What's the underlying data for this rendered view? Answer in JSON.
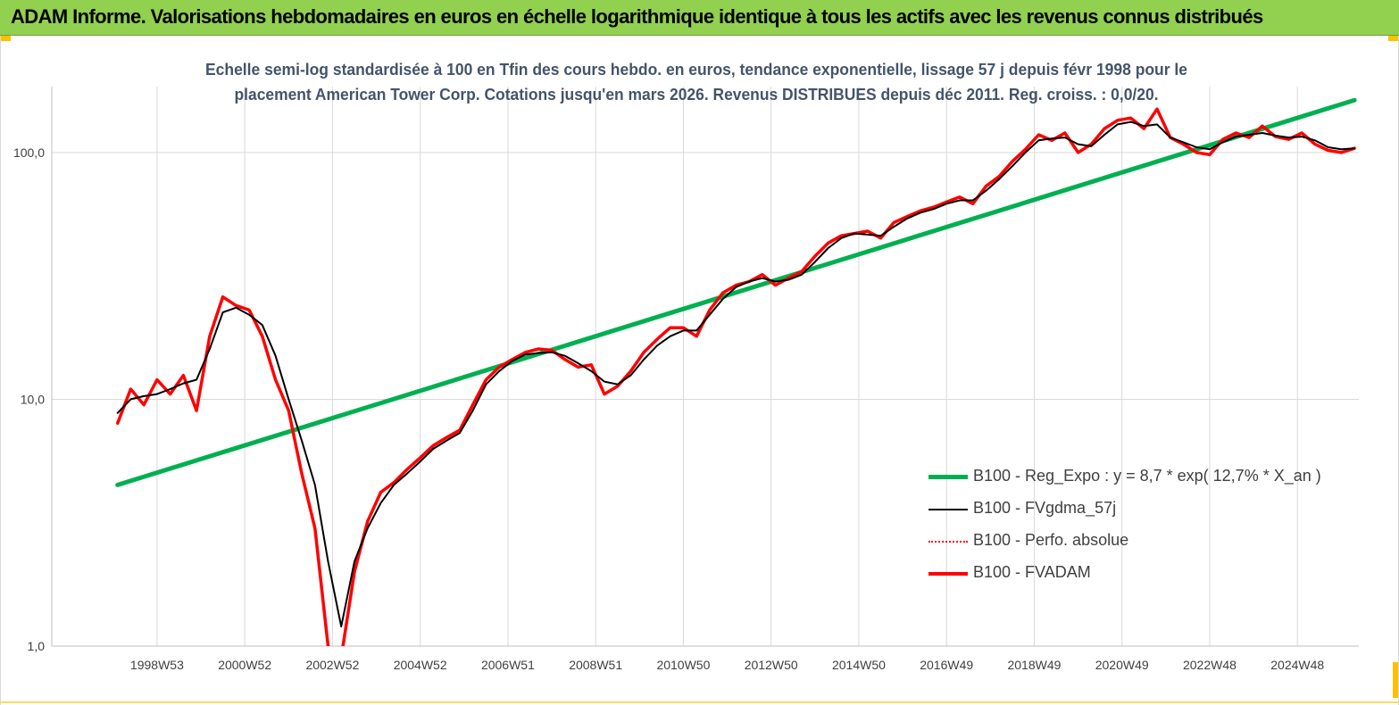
{
  "banner": {
    "title": "ADAM Informe. Valorisations hebdomadaires en euros en échelle logarithmique identique à tous les actifs avec les revenus connus distribués"
  },
  "colors": {
    "banner": "#92d050",
    "accent": "#ffc000",
    "regression": "#00b050",
    "fvgdma": "#000000",
    "perfo": "#ff0000",
    "fvadam": "#ff0000",
    "grid": "#d9d9d9",
    "axis": "#bfbfbf",
    "text": "#404040"
  },
  "chart_data": {
    "type": "line",
    "title_lines": [
      "Echelle semi-log standardisée à 100 en Tfin des cours hebdo. en euros, tendance exponentielle, lissage 57 j depuis févr 1998 pour le",
      "placement American Tower Corp. Cotations jusqu'en mars 2026. Revenus DISTRIBUES depuis déc 2011. Reg. croiss. : 0,0/20."
    ],
    "y_scale": "log",
    "ylim": [
      1,
      185
    ],
    "xlim": [
      1996.6,
      2026.4
    ],
    "y_ticks": [
      {
        "value": 1,
        "label": "1,0"
      },
      {
        "value": 10,
        "label": "10,0"
      },
      {
        "value": 100,
        "label": "100,0"
      }
    ],
    "x_ticks": [
      {
        "value": 1999.0,
        "label": "1998W53"
      },
      {
        "value": 2001.0,
        "label": "2000W52"
      },
      {
        "value": 2003.0,
        "label": "2002W52"
      },
      {
        "value": 2005.0,
        "label": "2004W52"
      },
      {
        "value": 2007.0,
        "label": "2006W51"
      },
      {
        "value": 2009.0,
        "label": "2008W51"
      },
      {
        "value": 2011.0,
        "label": "2010W50"
      },
      {
        "value": 2013.0,
        "label": "2012W50"
      },
      {
        "value": 2015.0,
        "label": "2014W50"
      },
      {
        "value": 2017.0,
        "label": "2016W49"
      },
      {
        "value": 2019.0,
        "label": "2018W49"
      },
      {
        "value": 2021.0,
        "label": "2020W49"
      },
      {
        "value": 2023.0,
        "label": "2022W48"
      },
      {
        "value": 2025.0,
        "label": "2024W48"
      }
    ],
    "grid": "vertical",
    "legend_position": "bottom-right",
    "series": [
      {
        "name": "B100 - Reg_Expo : y = 8,7 * exp( 12,7% *  X_an )",
        "key": "regression",
        "style": "thick",
        "x": [
          1998.1,
          2026.3
        ],
        "y": [
          4.5,
          163
        ]
      },
      {
        "name": "B100 - FVgdma_57j",
        "key": "fvgdma",
        "style": "thin",
        "x": [
          1998.1,
          1998.4,
          1998.7,
          1999.0,
          1999.3,
          1999.6,
          1999.9,
          2000.2,
          2000.5,
          2000.8,
          2001.1,
          2001.4,
          2001.7,
          2002.0,
          2002.3,
          2002.6,
          2002.9,
          2003.2,
          2003.5,
          2003.8,
          2004.1,
          2004.4,
          2004.7,
          2005.0,
          2005.3,
          2005.6,
          2005.9,
          2006.2,
          2006.5,
          2006.8,
          2007.1,
          2007.4,
          2007.7,
          2008.0,
          2008.3,
          2008.6,
          2008.9,
          2009.2,
          2009.5,
          2009.8,
          2010.1,
          2010.4,
          2010.7,
          2011.0,
          2011.3,
          2011.6,
          2011.9,
          2012.2,
          2012.5,
          2012.8,
          2013.1,
          2013.4,
          2013.7,
          2014.0,
          2014.3,
          2014.6,
          2014.9,
          2015.2,
          2015.5,
          2015.8,
          2016.1,
          2016.4,
          2016.7,
          2017.0,
          2017.3,
          2017.6,
          2017.9,
          2018.2,
          2018.5,
          2018.8,
          2019.1,
          2019.4,
          2019.7,
          2020.0,
          2020.3,
          2020.6,
          2020.9,
          2021.2,
          2021.5,
          2021.8,
          2022.1,
          2022.4,
          2022.7,
          2023.0,
          2023.3,
          2023.6,
          2023.9,
          2024.2,
          2024.5,
          2024.8,
          2025.1,
          2025.4,
          2025.7,
          2026.0,
          2026.3
        ],
        "y": [
          8.8,
          10.0,
          10.3,
          10.5,
          11.0,
          11.6,
          12.0,
          16.0,
          22.5,
          23.5,
          22.0,
          20.0,
          15.0,
          10.0,
          6.8,
          4.5,
          2.2,
          1.2,
          2.2,
          3.0,
          3.8,
          4.5,
          5.0,
          5.6,
          6.3,
          6.8,
          7.3,
          9.0,
          11.5,
          13.0,
          14.3,
          15.2,
          15.4,
          15.5,
          15.0,
          14.0,
          13.0,
          11.8,
          11.5,
          12.5,
          14.5,
          16.5,
          18.0,
          19.0,
          19.0,
          22.0,
          25.5,
          28.5,
          30.0,
          31.0,
          30.0,
          30.5,
          32.0,
          36.0,
          41.0,
          45.0,
          47.0,
          46.5,
          46.0,
          50.0,
          54.0,
          57.0,
          59.0,
          62.0,
          64.0,
          64.0,
          70.0,
          78.0,
          88.0,
          100.0,
          112.0,
          114.0,
          115.0,
          108.0,
          106.0,
          118.0,
          130.0,
          133.0,
          128.0,
          130.0,
          115.0,
          110.0,
          105.0,
          103.0,
          110.0,
          116.0,
          118.0,
          120.0,
          117.0,
          115.0,
          116.0,
          112.0,
          105.0,
          103.0,
          104.0
        ]
      },
      {
        "name": "B100 - Perfo. absolue",
        "key": "perfo",
        "style": "dotted",
        "x": [
          1998.1,
          1998.4,
          1998.7,
          1999.0,
          1999.3,
          1999.6,
          1999.9,
          2000.2,
          2000.5,
          2000.8,
          2001.1,
          2001.4,
          2001.7,
          2002.0,
          2002.3,
          2002.6,
          2002.9,
          2003.2,
          2003.5,
          2003.8,
          2004.1,
          2004.4,
          2004.7,
          2005.0,
          2005.3,
          2005.6,
          2005.9,
          2006.2,
          2006.5,
          2006.8,
          2007.1,
          2007.4,
          2007.7,
          2008.0,
          2008.3,
          2008.6,
          2008.9,
          2009.2,
          2009.5,
          2009.8,
          2010.1,
          2010.4,
          2010.7,
          2011.0,
          2011.3,
          2011.6,
          2011.9,
          2012.2,
          2012.5,
          2012.8,
          2013.1,
          2013.4,
          2013.7,
          2014.0,
          2014.3,
          2014.6,
          2014.9,
          2015.2,
          2015.5,
          2015.8,
          2016.1,
          2016.4,
          2016.7,
          2017.0,
          2017.3,
          2017.6,
          2017.9,
          2018.2,
          2018.5,
          2018.8,
          2019.1,
          2019.4,
          2019.7,
          2020.0,
          2020.3,
          2020.6,
          2020.9,
          2021.2,
          2021.5,
          2021.8,
          2022.1,
          2022.4,
          2022.7,
          2023.0,
          2023.3,
          2023.6,
          2023.9,
          2024.2,
          2024.5,
          2024.8,
          2025.1,
          2025.4,
          2025.7,
          2026.0,
          2026.3
        ],
        "y": [
          8.0,
          11.0,
          9.5,
          12.0,
          10.5,
          12.5,
          9.0,
          18.0,
          26.0,
          24.0,
          23.0,
          18.0,
          12.0,
          9.0,
          5.0,
          3.0,
          1.0,
          0.9,
          2.0,
          3.2,
          4.2,
          4.6,
          5.2,
          5.8,
          6.5,
          7.0,
          7.5,
          9.5,
          12.0,
          13.5,
          14.5,
          15.5,
          16.0,
          15.8,
          14.5,
          13.5,
          13.8,
          10.5,
          11.3,
          13.0,
          15.5,
          17.5,
          19.5,
          19.5,
          18.0,
          23.0,
          27.0,
          29.0,
          30.0,
          32.0,
          29.0,
          31.0,
          33.0,
          38.0,
          43.0,
          46.0,
          47.0,
          48.0,
          45.0,
          52.0,
          55.0,
          58.0,
          60.0,
          63.0,
          66.0,
          62.0,
          73.0,
          80.0,
          92.0,
          103.0,
          118.0,
          112.0,
          120.0,
          100.0,
          108.0,
          125.0,
          135.0,
          138.0,
          125.0,
          150.0,
          115.0,
          108.0,
          100.0,
          98.0,
          113.0,
          120.0,
          115.0,
          128.0,
          116.0,
          113.0,
          120.0,
          108.0,
          102.0,
          100.0,
          104.0
        ]
      },
      {
        "name": "B100 - FVADAM",
        "key": "fvadam",
        "style": "bold",
        "x": [
          1998.1,
          1998.4,
          1998.7,
          1999.0,
          1999.3,
          1999.6,
          1999.9,
          2000.2,
          2000.5,
          2000.8,
          2001.1,
          2001.4,
          2001.7,
          2002.0,
          2002.3,
          2002.6,
          2002.9,
          2003.2,
          2003.5,
          2003.8,
          2004.1,
          2004.4,
          2004.7,
          2005.0,
          2005.3,
          2005.6,
          2005.9,
          2006.2,
          2006.5,
          2006.8,
          2007.1,
          2007.4,
          2007.7,
          2008.0,
          2008.3,
          2008.6,
          2008.9,
          2009.2,
          2009.5,
          2009.8,
          2010.1,
          2010.4,
          2010.7,
          2011.0,
          2011.3,
          2011.6,
          2011.9,
          2012.2,
          2012.5,
          2012.8,
          2013.1,
          2013.4,
          2013.7,
          2014.0,
          2014.3,
          2014.6,
          2014.9,
          2015.2,
          2015.5,
          2015.8,
          2016.1,
          2016.4,
          2016.7,
          2017.0,
          2017.3,
          2017.6,
          2017.9,
          2018.2,
          2018.5,
          2018.8,
          2019.1,
          2019.4,
          2019.7,
          2020.0,
          2020.3,
          2020.6,
          2020.9,
          2021.2,
          2021.5,
          2021.8,
          2022.1,
          2022.4,
          2022.7,
          2023.0,
          2023.3,
          2023.6,
          2023.9,
          2024.2,
          2024.5,
          2024.8,
          2025.1,
          2025.4,
          2025.7,
          2026.0,
          2026.3
        ],
        "y": [
          8.0,
          11.0,
          9.5,
          12.0,
          10.5,
          12.5,
          9.0,
          18.0,
          26.0,
          24.0,
          23.0,
          18.0,
          12.0,
          9.0,
          5.0,
          3.0,
          1.0,
          0.9,
          2.0,
          3.2,
          4.2,
          4.6,
          5.2,
          5.8,
          6.5,
          7.0,
          7.5,
          9.5,
          12.0,
          13.5,
          14.5,
          15.5,
          16.0,
          15.8,
          14.5,
          13.5,
          13.8,
          10.5,
          11.3,
          13.0,
          15.5,
          17.5,
          19.5,
          19.5,
          18.0,
          23.0,
          27.0,
          29.0,
          30.0,
          32.0,
          29.0,
          31.0,
          33.0,
          38.0,
          43.0,
          46.0,
          47.0,
          48.0,
          45.0,
          52.0,
          55.0,
          58.0,
          60.0,
          63.0,
          66.0,
          62.0,
          73.0,
          80.0,
          92.0,
          103.0,
          118.0,
          112.0,
          120.0,
          100.0,
          108.0,
          125.0,
          135.0,
          138.0,
          125.0,
          150.0,
          115.0,
          108.0,
          100.0,
          98.0,
          113.0,
          120.0,
          115.0,
          128.0,
          116.0,
          113.0,
          120.0,
          108.0,
          102.0,
          100.0,
          104.0
        ]
      }
    ]
  }
}
